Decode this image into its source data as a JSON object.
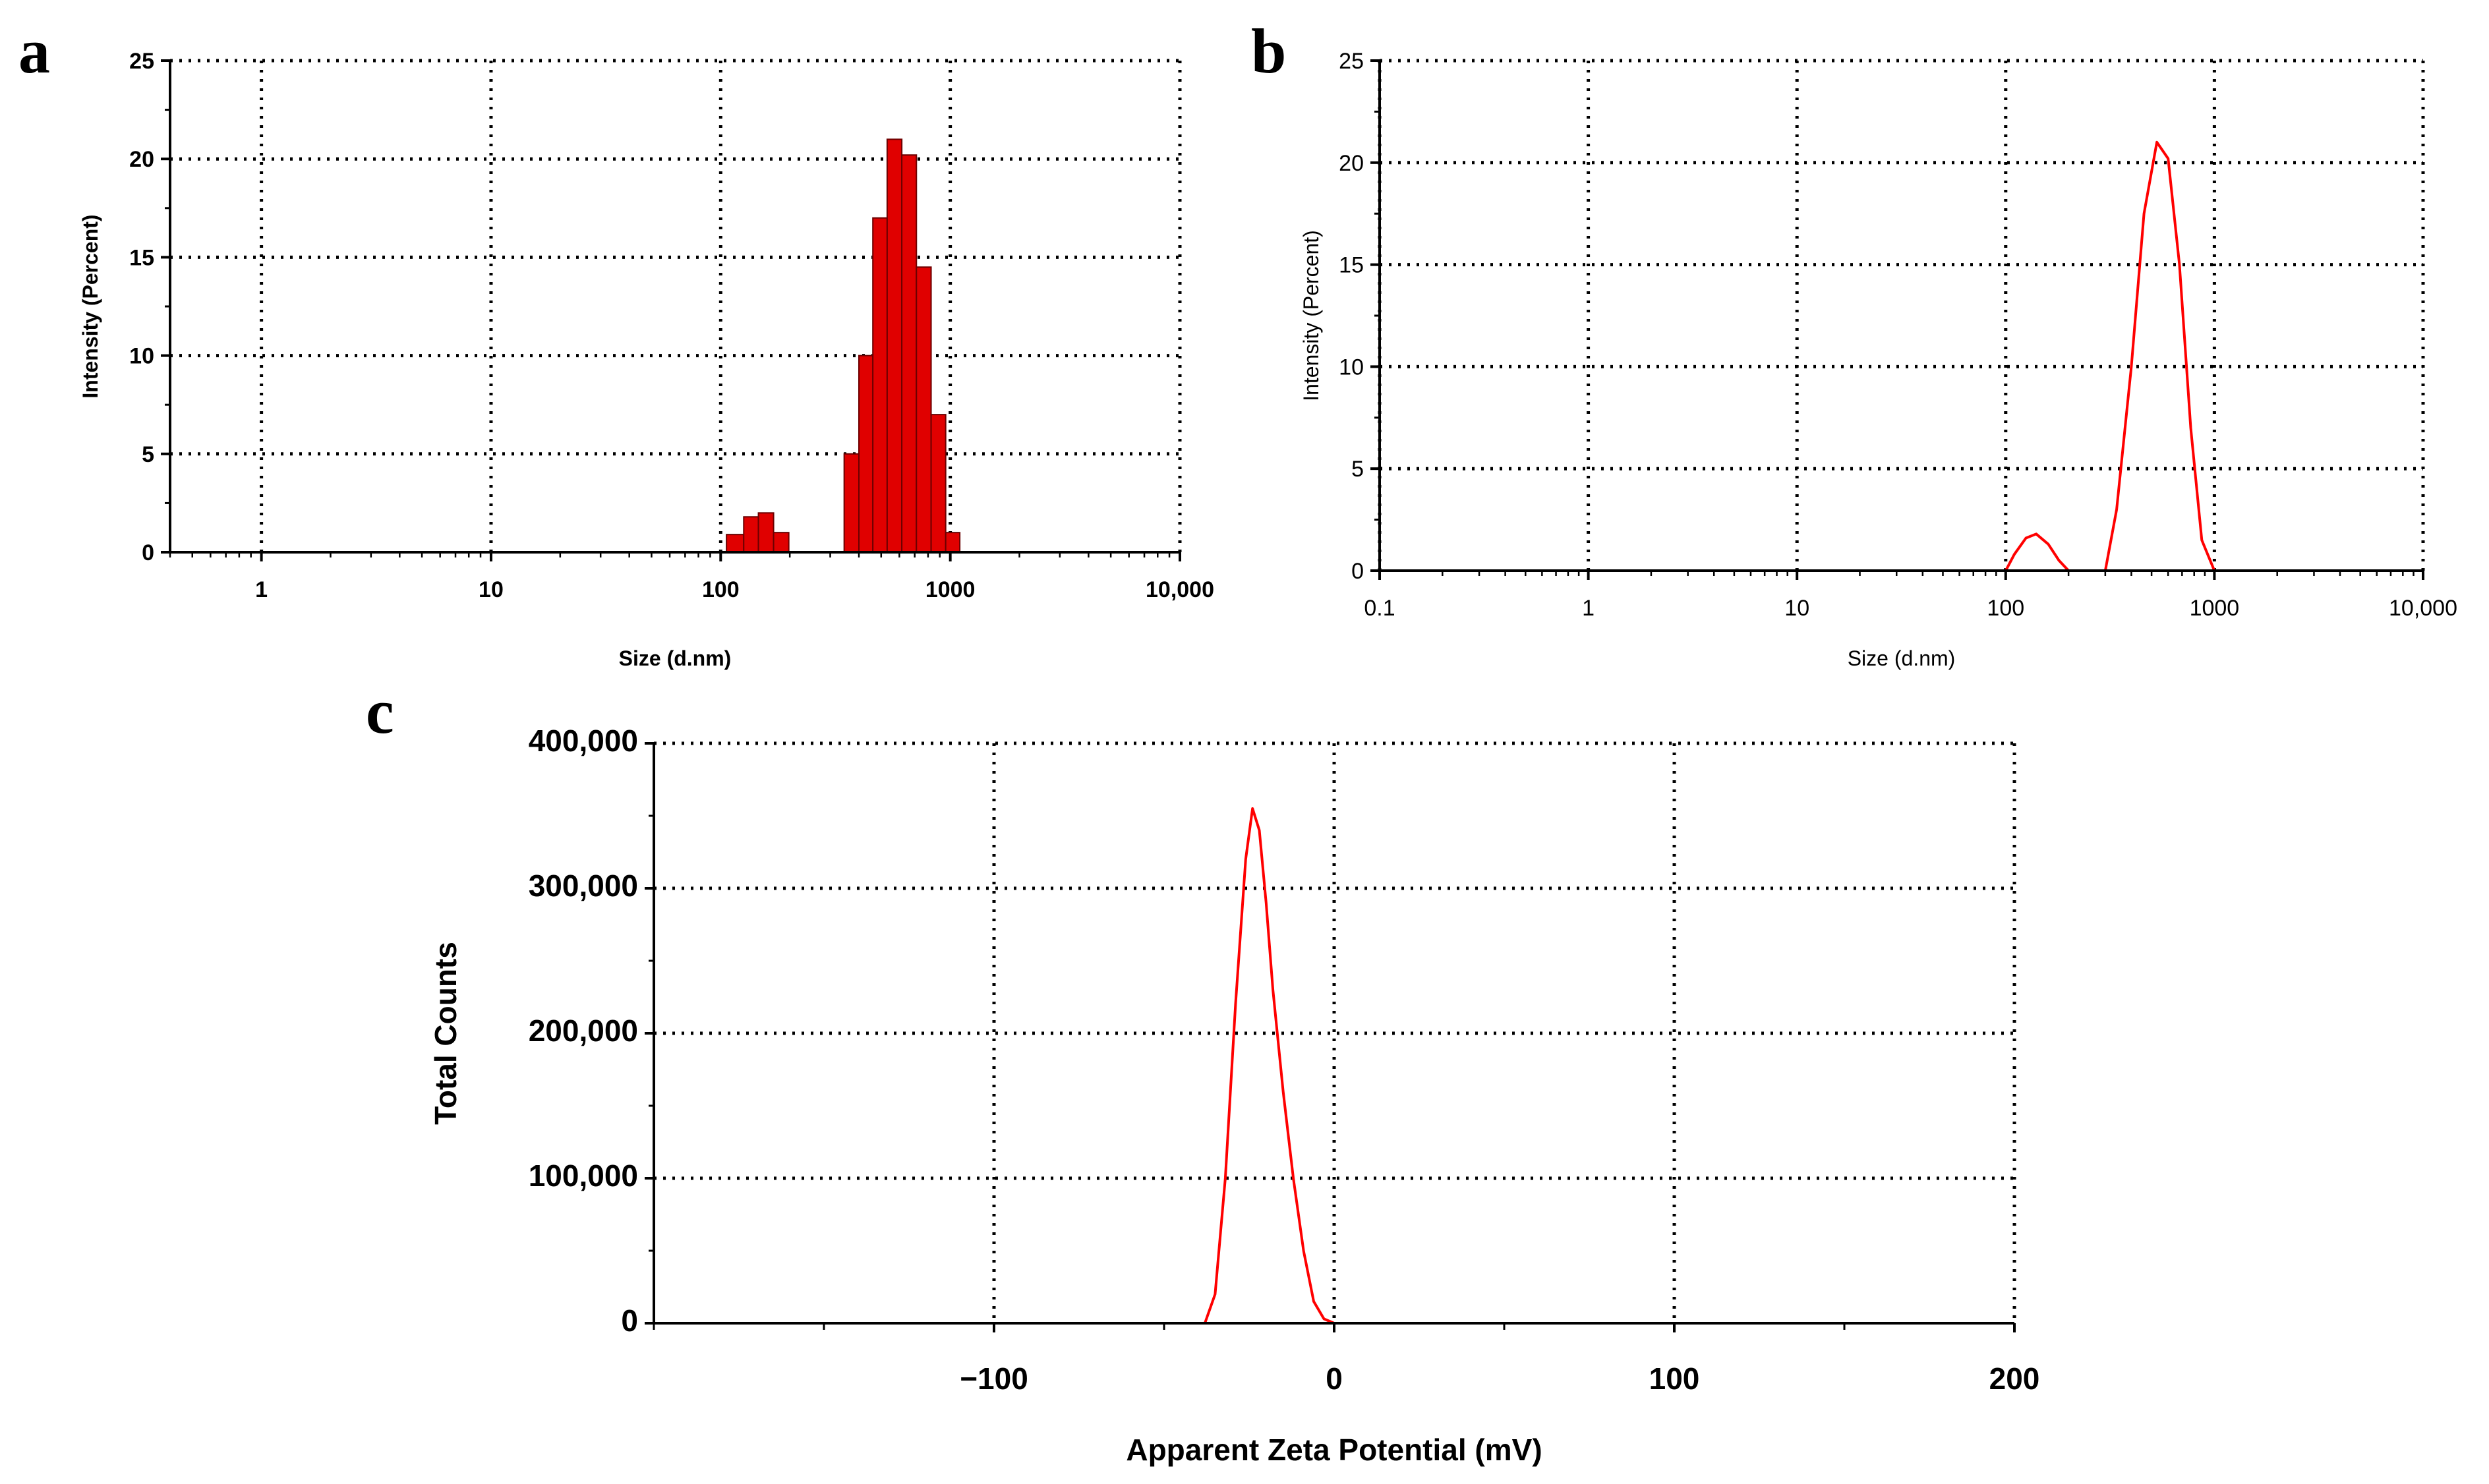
{
  "figure": {
    "background": "#ffffff",
    "accent": "#ff0000",
    "bar_fill": "#e00000"
  },
  "chart_data": [
    {
      "id": "a",
      "panel_label": "a",
      "type": "bar",
      "x_scale": "log",
      "xlim": [
        0.4,
        10000
      ],
      "ylim": [
        0,
        25
      ],
      "grid": true,
      "xlabel": "Size (d.nm)",
      "ylabel": "Intensity (Percent)",
      "x_ticks": [
        {
          "value": 1,
          "label": "1"
        },
        {
          "value": 10,
          "label": "10"
        },
        {
          "value": 100,
          "label": "100"
        },
        {
          "value": 1000,
          "label": "1000"
        },
        {
          "value": 10000,
          "label": "10,000"
        }
      ],
      "y_ticks": [
        {
          "value": 0,
          "label": "0"
        },
        {
          "value": 5,
          "label": "5"
        },
        {
          "value": 10,
          "label": "10"
        },
        {
          "value": 15,
          "label": "15"
        },
        {
          "value": 20,
          "label": "20"
        },
        {
          "value": 25,
          "label": "25"
        }
      ],
      "bars": [
        {
          "x0": 106,
          "x1": 126,
          "y": 0.9
        },
        {
          "x0": 126,
          "x1": 146,
          "y": 1.8
        },
        {
          "x0": 146,
          "x1": 170,
          "y": 2.0
        },
        {
          "x0": 170,
          "x1": 198,
          "y": 1.0
        },
        {
          "x0": 345,
          "x1": 400,
          "y": 5.0
        },
        {
          "x0": 400,
          "x1": 460,
          "y": 10.0
        },
        {
          "x0": 460,
          "x1": 531,
          "y": 17.0
        },
        {
          "x0": 531,
          "x1": 615,
          "y": 21.0
        },
        {
          "x0": 615,
          "x1": 712,
          "y": 20.2
        },
        {
          "x0": 712,
          "x1": 825,
          "y": 14.5
        },
        {
          "x0": 825,
          "x1": 955,
          "y": 7.0
        },
        {
          "x0": 955,
          "x1": 1100,
          "y": 1.0
        }
      ]
    },
    {
      "id": "b",
      "panel_label": "b",
      "type": "line",
      "x_scale": "log",
      "xlim": [
        0.1,
        10000
      ],
      "ylim": [
        0,
        25
      ],
      "grid": true,
      "xlabel": "Size (d.nm)",
      "ylabel": "Intensity (Percent)",
      "x_ticks": [
        {
          "value": 0.1,
          "label": "0.1"
        },
        {
          "value": 1,
          "label": "1"
        },
        {
          "value": 10,
          "label": "10"
        },
        {
          "value": 100,
          "label": "100"
        },
        {
          "value": 1000,
          "label": "1000"
        },
        {
          "value": 10000,
          "label": "10,000"
        }
      ],
      "y_ticks": [
        {
          "value": 0,
          "label": "0"
        },
        {
          "value": 5,
          "label": "5"
        },
        {
          "value": 10,
          "label": "10"
        },
        {
          "value": 15,
          "label": "15"
        },
        {
          "value": 20,
          "label": "20"
        },
        {
          "value": 25,
          "label": "25"
        }
      ],
      "x_data_range": [
        0.4,
        10000
      ],
      "series": [
        {
          "x": [
            0.4,
            100,
            110,
            125,
            140,
            160,
            180,
            200,
            300,
            340,
            400,
            460,
            530,
            600,
            680,
            770,
            870,
            1000,
            1200,
            10000
          ],
          "y": [
            0,
            0,
            0.8,
            1.6,
            1.8,
            1.3,
            0.5,
            0,
            0,
            3.0,
            10.0,
            17.5,
            21.0,
            20.2,
            15.0,
            7.0,
            1.5,
            0,
            0,
            0
          ]
        }
      ]
    },
    {
      "id": "c",
      "panel_label": "c",
      "type": "line",
      "x_scale": "linear",
      "xlim": [
        -200,
        200
      ],
      "ylim": [
        0,
        400000
      ],
      "grid": true,
      "xlabel": "Apparent Zeta Potential (mV)",
      "ylabel": "Total Counts",
      "x_ticks": [
        {
          "value": -100,
          "label": "−100"
        },
        {
          "value": 0,
          "label": "0"
        },
        {
          "value": 100,
          "label": "100"
        },
        {
          "value": 200,
          "label": "200"
        }
      ],
      "y_ticks": [
        {
          "value": 0,
          "label": "0"
        },
        {
          "value": 100000,
          "label": "100,000"
        },
        {
          "value": 200000,
          "label": "200,000"
        },
        {
          "value": 300000,
          "label": "300,000"
        },
        {
          "value": 400000,
          "label": "400,000"
        }
      ],
      "x_data_range": [
        -150,
        150
      ],
      "series": [
        {
          "x": [
            -150,
            -38,
            -35,
            -32,
            -29,
            -26,
            -24,
            -22,
            -20,
            -18,
            -15,
            -12,
            -9,
            -6,
            -3,
            0,
            150
          ],
          "y": [
            0,
            0,
            20000,
            100000,
            220000,
            320000,
            355000,
            340000,
            290000,
            230000,
            160000,
            100000,
            50000,
            15000,
            3000,
            0,
            0
          ]
        }
      ]
    }
  ]
}
